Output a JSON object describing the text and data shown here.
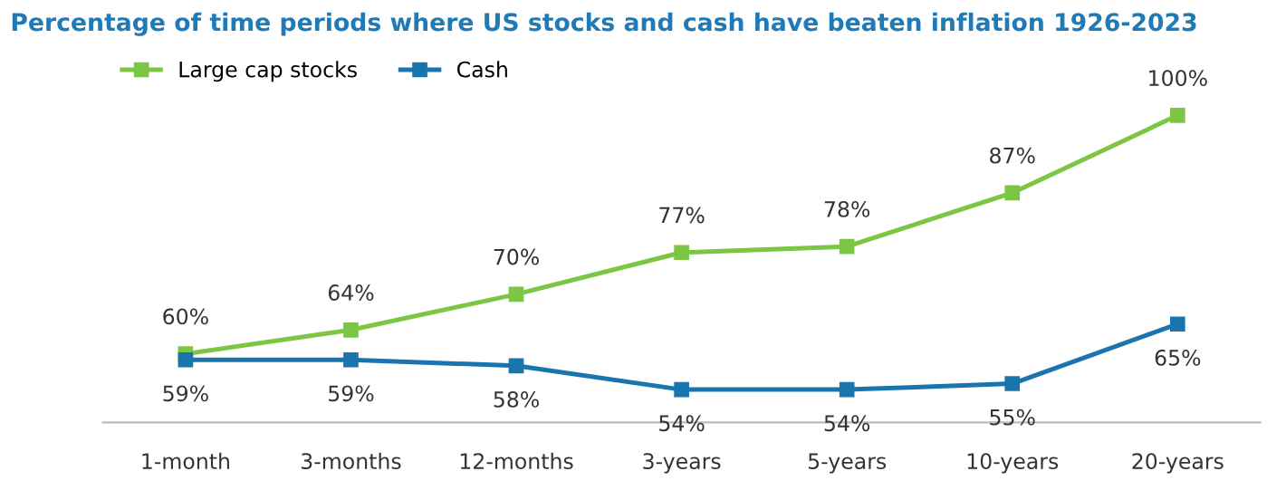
{
  "chart_data": {
    "type": "line",
    "title": "Percentage of time periods where US stocks and cash have beaten inflation 1926-2023",
    "categories": [
      "1-month",
      "3-months",
      "12-months",
      "3-years",
      "5-years",
      "10-years",
      "20-years"
    ],
    "series": [
      {
        "name": "Large cap stocks",
        "color": "#7cc644",
        "values": [
          60,
          64,
          70,
          77,
          78,
          87,
          100
        ],
        "value_labels": [
          "60%",
          "64%",
          "70%",
          "77%",
          "78%",
          "87%",
          "100%"
        ]
      },
      {
        "name": "Cash",
        "color": "#1a75ae",
        "values": [
          59,
          59,
          58,
          54,
          54,
          55,
          65
        ],
        "value_labels": [
          "59%",
          "59%",
          "58%",
          "54%",
          "54%",
          "55%",
          "65%"
        ]
      }
    ],
    "marker": "square",
    "line_style": "solid",
    "legend": "top left",
    "grid": false,
    "tick_labels": "x"
  }
}
